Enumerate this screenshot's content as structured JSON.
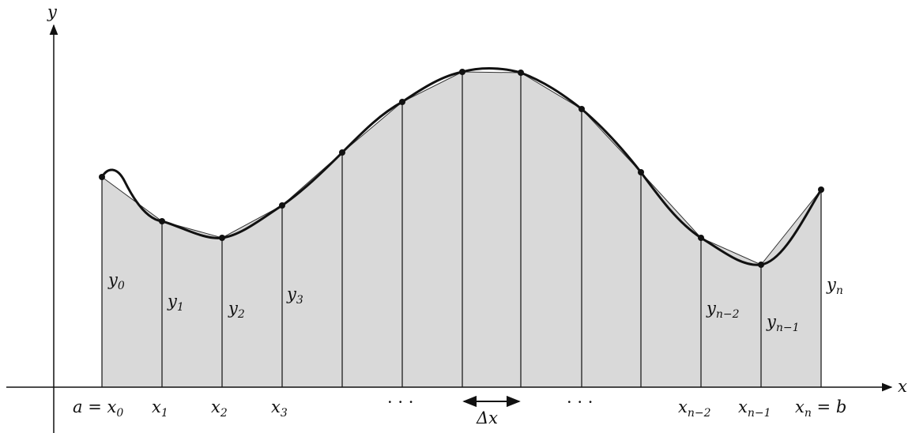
{
  "axes": {
    "x_label": "x",
    "y_label": "y"
  },
  "x_labels": [
    {
      "main": "a = x",
      "sub": "0"
    },
    {
      "main": "x",
      "sub": "1"
    },
    {
      "main": "x",
      "sub": "2"
    },
    {
      "main": "x",
      "sub": "3"
    },
    {
      "main": "x",
      "sub": "n−2"
    },
    {
      "main": "x",
      "sub": "n−1"
    },
    {
      "main": "x",
      "sub": "n",
      "tail": " = b"
    }
  ],
  "y_labels": [
    {
      "main": "y",
      "sub": "0"
    },
    {
      "main": "y",
      "sub": "1"
    },
    {
      "main": "y",
      "sub": "2"
    },
    {
      "main": "y",
      "sub": "3"
    },
    {
      "main": "y",
      "sub": "n−2"
    },
    {
      "main": "y",
      "sub": "n−1"
    },
    {
      "main": "y",
      "sub": "n"
    }
  ],
  "ellipsis": "· · ·",
  "delta_label": "Δx",
  "colors": {
    "fill": "#d9d9d9",
    "stroke": "#111111"
  }
}
